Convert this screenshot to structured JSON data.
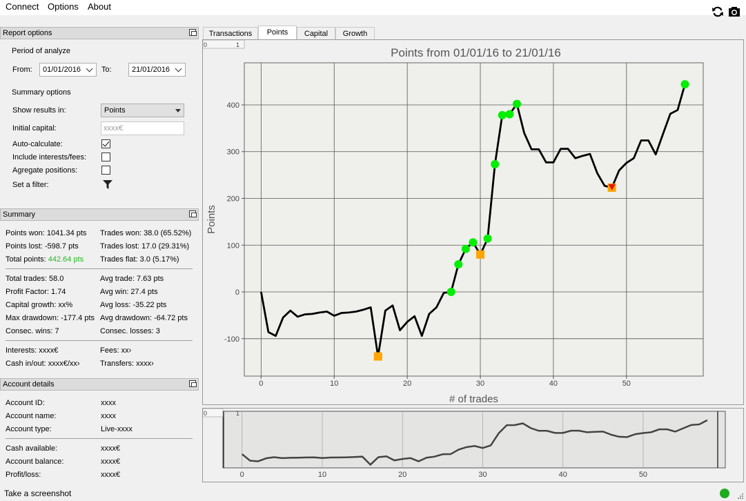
{
  "menu": {
    "connect": "Connect",
    "options": "Options",
    "about": "About"
  },
  "toolbar": {
    "refresh_icon": "refresh-icon",
    "camera_icon": "camera-icon"
  },
  "report_options": {
    "title": "Report options",
    "period_label": "Period of analyze",
    "from_label": "From:",
    "from_value": "01/01/2016",
    "to_label": "To:",
    "to_value": "21/01/2016",
    "summary_options_label": "Summary options",
    "show_results_label": "Show results in:",
    "show_results_value": "Points",
    "initial_capital_label": "Initial capital:",
    "initial_capital_placeholder": "xxxx€",
    "auto_calculate_label": "Auto-calculate:",
    "auto_calculate_checked": true,
    "include_interests_label": "Include interests/fees:",
    "include_interests_checked": false,
    "aggregate_label": "Agregate positions:",
    "aggregate_checked": false,
    "filter_label": "Set a filter:"
  },
  "summary": {
    "title": "Summary",
    "points_won": "Points won: 1041.34 pts",
    "trades_won": "Trades won: 38.0 (65.52%)",
    "points_lost": "Points lost: -598.7 pts",
    "trades_lost": "Trades lost: 17.0 (29.31%)",
    "total_points_label": "Total points: ",
    "total_points_value": "442.64 pts",
    "trades_flat": "Trades flat: 3.0 (5.17%)",
    "total_trades": "Total trades: 58.0",
    "avg_trade": "Avg trade: 7.63 pts",
    "profit_factor": "Profit Factor: 1.74",
    "avg_win": "Avg win: 27.4 pts",
    "capital_growth": "Capital growth: xx%",
    "avg_loss": "Avg loss: -35.22 pts",
    "max_drawdown": "Max drawdown: -177.4 pts",
    "avg_drawdown": "Avg drawdown: -64.72 pts",
    "consec_wins": "Consec. wins: 7",
    "consec_losses": "Consec. losses: 3",
    "interests": "Interests: xxxx€",
    "fees": "Fees: xx›",
    "cash_in_out": "Cash in/out: xxxx€/xx›",
    "transfers": "Transfers: xxxx›",
    "positive_color": "#22b822"
  },
  "account": {
    "title": "Account details",
    "id_label": "Account ID:",
    "id_value": "xxxx",
    "name_label": "Account name:",
    "name_value": "xxxx",
    "type_label": "Account type:",
    "type_value": "Live-xxxx",
    "cash_label": "Cash available:",
    "cash_value": "xxxx€",
    "balance_label": "Account balance:",
    "balance_value": "xxxx€",
    "pl_label": "Profit/loss:",
    "pl_value": "xxxx€"
  },
  "tabs": [
    {
      "label": "Transactions",
      "active": false
    },
    {
      "label": "Points",
      "active": true
    },
    {
      "label": "Capital",
      "active": false
    },
    {
      "label": "Growth",
      "active": false
    }
  ],
  "statusbar": {
    "screenshot_label": "Take a screenshot",
    "status_color": "#1faa1f"
  },
  "chart_data": {
    "type": "line",
    "title": "Points from 01/01/16 to 21/01/16",
    "xlabel": "# of trades",
    "ylabel": "Points",
    "xlim": [
      -2.3,
      60.5
    ],
    "ylim": [
      -180,
      490
    ],
    "xticks": [
      0,
      10,
      20,
      30,
      40,
      50
    ],
    "yticks": [
      -100,
      0,
      100,
      200,
      300,
      400
    ],
    "grid": true,
    "corner_labels": [
      "0",
      "1"
    ],
    "x": [
      0,
      1,
      2,
      3,
      4,
      5,
      6,
      7,
      8,
      9,
      10,
      11,
      12,
      13,
      14,
      15,
      16,
      17,
      18,
      19,
      20,
      21,
      22,
      23,
      24,
      25,
      26,
      27,
      28,
      29,
      30,
      31,
      32,
      33,
      34,
      35,
      36,
      37,
      38,
      39,
      40,
      41,
      42,
      43,
      44,
      45,
      46,
      47,
      48,
      49,
      50,
      51,
      52,
      53,
      54,
      55,
      56,
      57,
      58
    ],
    "values": [
      0,
      -86,
      -94,
      -55,
      -40,
      -53,
      -48,
      -47,
      -44,
      -42,
      -51,
      -45,
      -44,
      -42,
      -38,
      -33,
      -138,
      -40,
      -29,
      -82,
      -64,
      -52,
      -94,
      -47,
      -33,
      -2,
      0,
      59,
      92,
      106,
      80,
      114,
      273,
      378,
      380,
      402,
      340,
      305,
      305,
      277,
      277,
      306,
      306,
      286,
      291,
      295,
      254,
      227,
      223,
      260,
      276,
      286,
      324,
      324,
      294,
      338,
      381,
      389,
      444
    ],
    "markers": {
      "green_circles": [
        26,
        27,
        28,
        29,
        31,
        32,
        33,
        34,
        35,
        58
      ],
      "orange_squares": [
        16,
        30,
        48
      ],
      "red_triangles": [
        48
      ]
    },
    "series_color": "#000000",
    "marker_colors": {
      "win": "#00ee00",
      "drawdown": "#ffa500",
      "low": "#e01010"
    },
    "navigator": {
      "xticks": [
        0,
        10,
        20,
        30,
        40,
        50
      ],
      "corner_labels": [
        "0",
        "1"
      ]
    }
  }
}
